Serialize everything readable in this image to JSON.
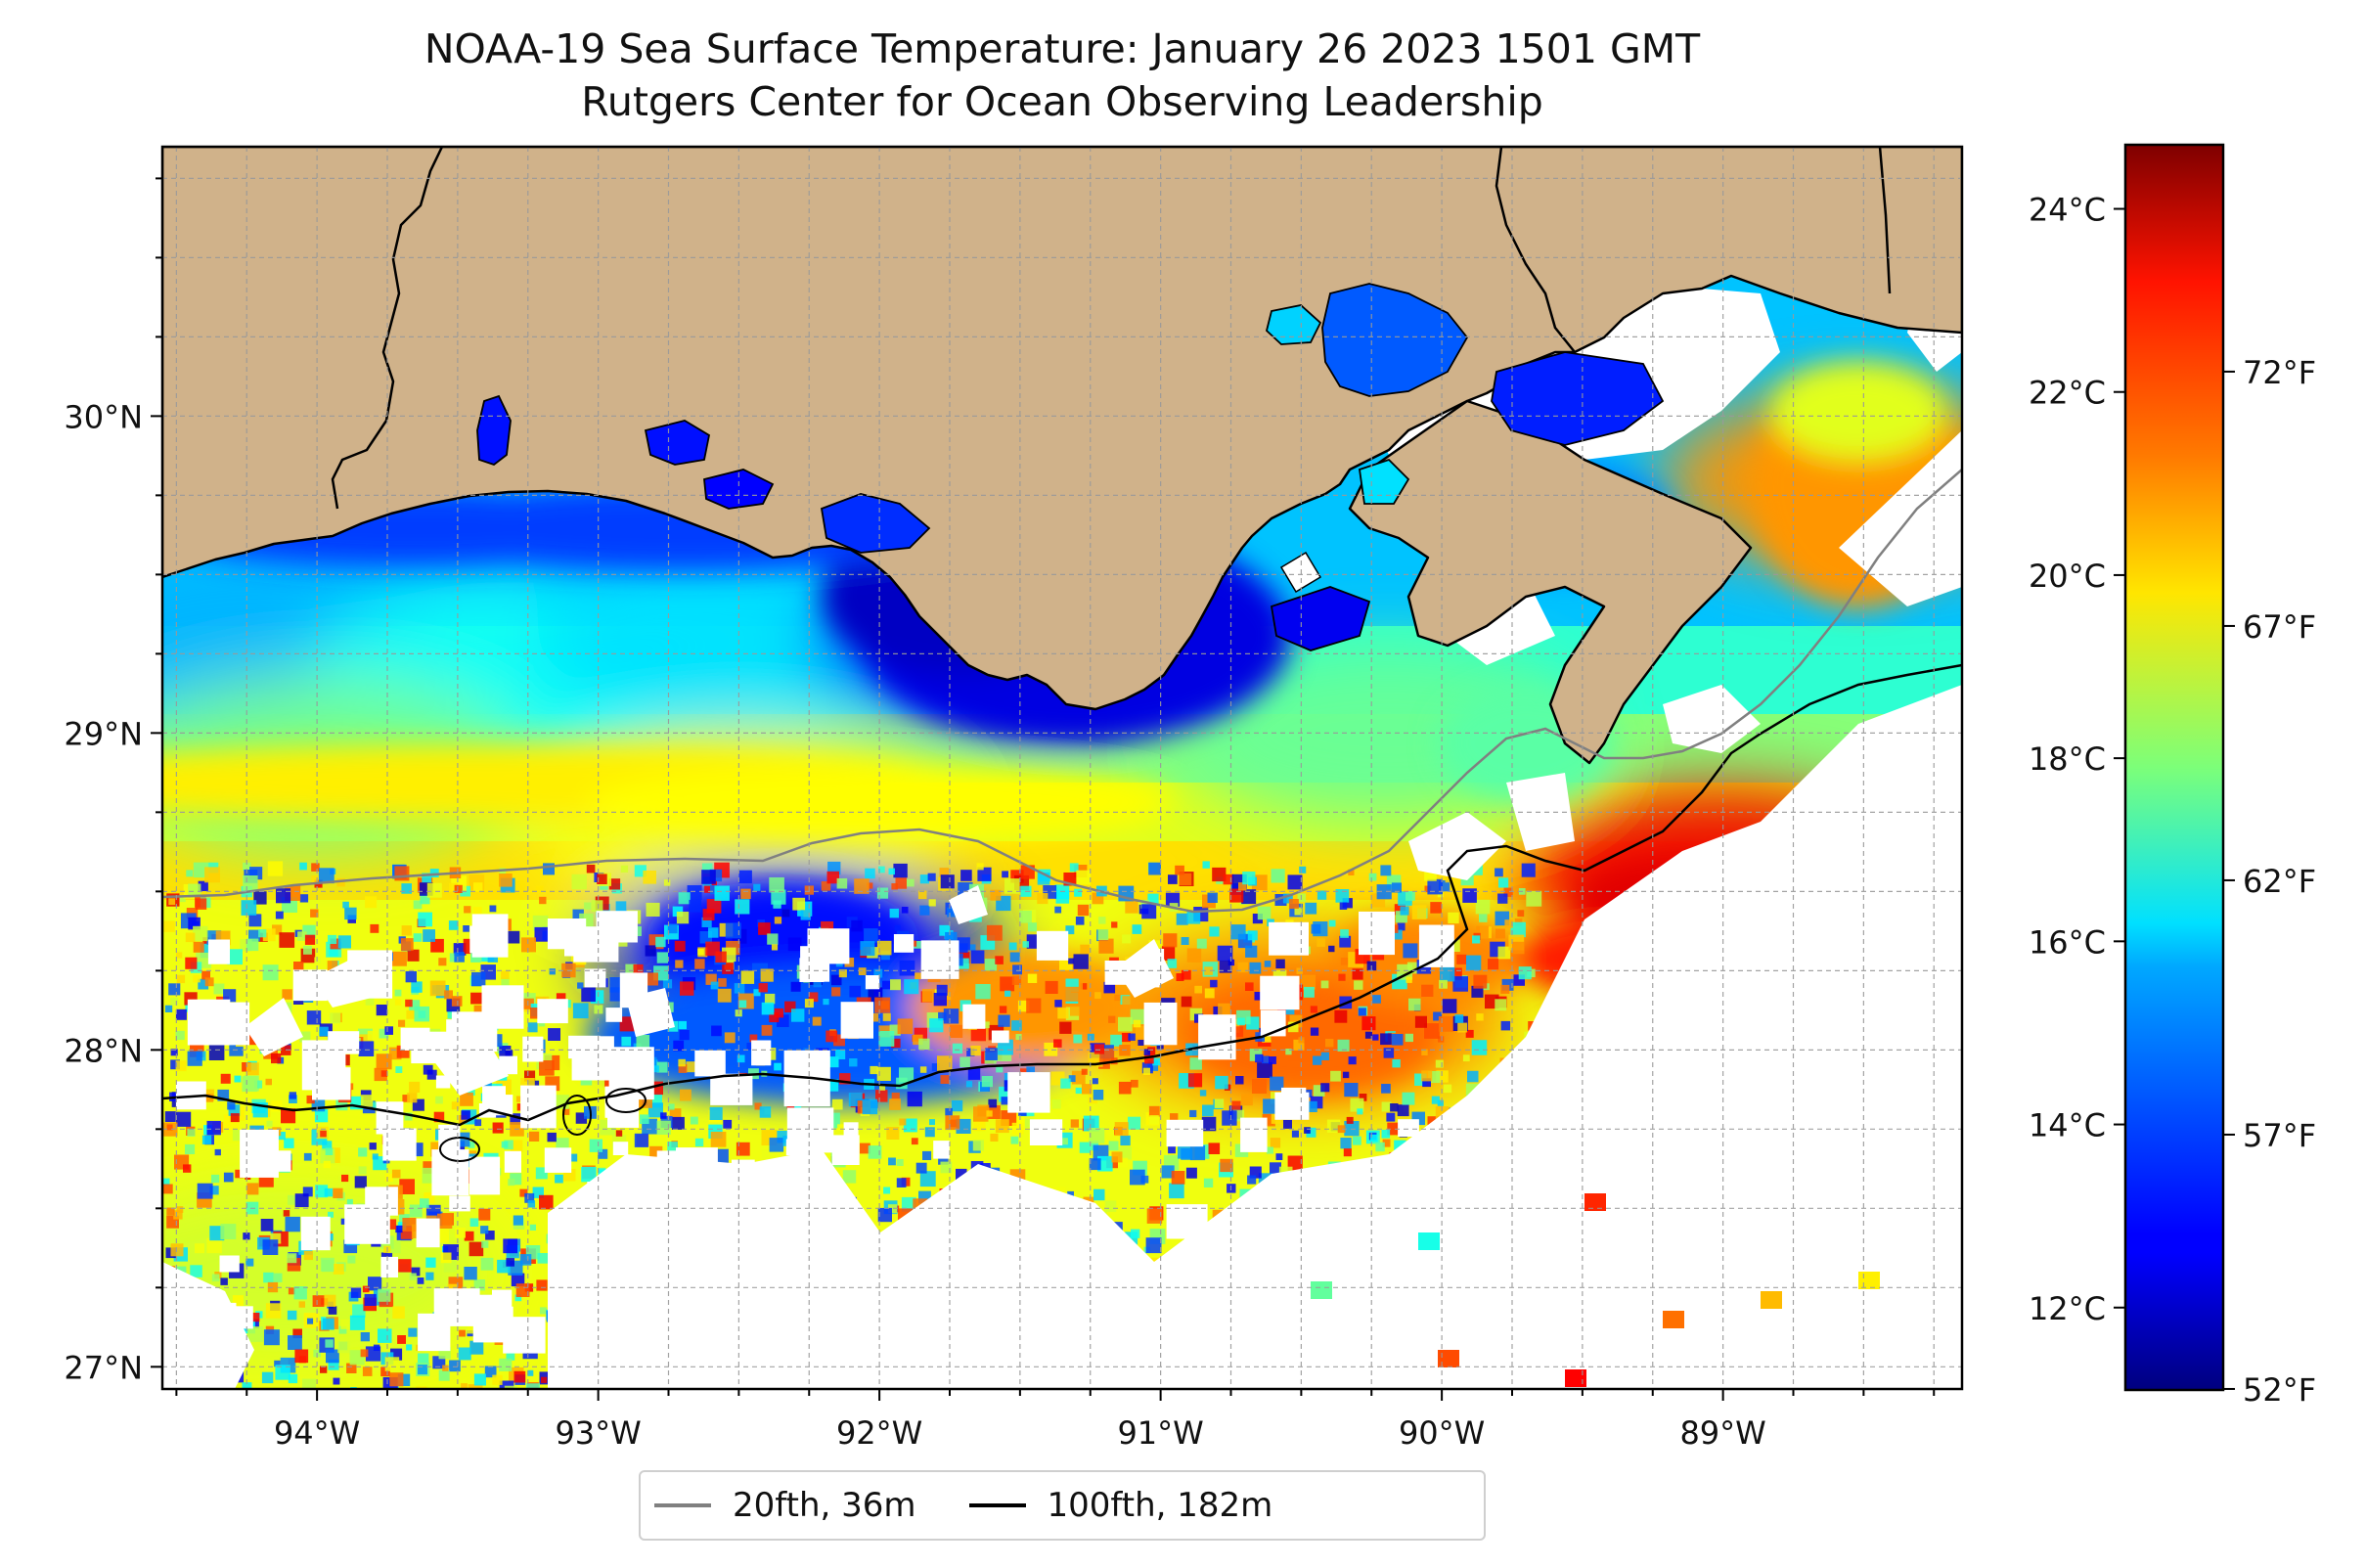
{
  "title": "NOAA-19 Sea Surface Temperature: January 26 2023 1501 GMT",
  "subtitle": "Rutgers Center for Ocean Observing Leadership",
  "chart_data": {
    "type": "heatmap",
    "projection": "plate carree",
    "lon_range": [
      -94.55,
      -88.15
    ],
    "lat_range": [
      26.93,
      30.85
    ],
    "lon_ticks": [
      {
        "value": -94,
        "label": "94°W"
      },
      {
        "value": -93,
        "label": "93°W"
      },
      {
        "value": -92,
        "label": "92°W"
      },
      {
        "value": -91,
        "label": "91°W"
      },
      {
        "value": -90,
        "label": "90°W"
      },
      {
        "value": -89,
        "label": "89°W"
      }
    ],
    "lat_ticks": [
      {
        "value": 27,
        "label": "27°N"
      },
      {
        "value": 28,
        "label": "28°N"
      },
      {
        "value": 29,
        "label": "29°N"
      },
      {
        "value": 30,
        "label": "30°N"
      }
    ],
    "grid": true,
    "land_color": "#d0b28a",
    "colorbar": {
      "cmap": "jet",
      "range_c": [
        11.1,
        24.7
      ],
      "celsius_ticks": [
        {
          "value": 12,
          "label": "12°C"
        },
        {
          "value": 14,
          "label": "14°C"
        },
        {
          "value": 16,
          "label": "16°C"
        },
        {
          "value": 18,
          "label": "18°C"
        },
        {
          "value": 20,
          "label": "20°C"
        },
        {
          "value": 22,
          "label": "22°C"
        },
        {
          "value": 24,
          "label": "24°C"
        }
      ],
      "fahrenheit_ticks": [
        {
          "value": 52,
          "label": "52°F"
        },
        {
          "value": 57,
          "label": "57°F"
        },
        {
          "value": 62,
          "label": "62°F"
        },
        {
          "value": 67,
          "label": "67°F"
        },
        {
          "value": 72,
          "label": "72°F"
        }
      ]
    },
    "legend": {
      "placement": "bottom-center",
      "entries": [
        {
          "label": "20fth, 36m",
          "color": "#808080"
        },
        {
          "label": "100fth, 182m",
          "color": "#000000"
        }
      ]
    },
    "temperature_regions_c": [
      {
        "lon": -94.2,
        "lat": 29.3,
        "temp": 15.2
      },
      {
        "lon": -93.3,
        "lat": 29.2,
        "temp": 16.3
      },
      {
        "lon": -92.5,
        "lat": 29.3,
        "temp": 15.8
      },
      {
        "lon": -91.5,
        "lat": 29.3,
        "temp": 12.8
      },
      {
        "lon": -94.0,
        "lat": 28.9,
        "temp": 17.8
      },
      {
        "lon": -92.5,
        "lat": 28.7,
        "temp": 19.5
      },
      {
        "lon": -90.2,
        "lat": 29.0,
        "temp": 17.6
      },
      {
        "lon": -92.3,
        "lat": 28.3,
        "temp": 13.2
      },
      {
        "lon": -90.5,
        "lat": 28.1,
        "temp": 21.3
      },
      {
        "lon": -89.0,
        "lat": 28.55,
        "temp": 23.2
      },
      {
        "lon": -88.5,
        "lat": 29.8,
        "temp": 21.0
      },
      {
        "lon": -94.1,
        "lat": 27.3,
        "temp": 19.0
      }
    ]
  }
}
